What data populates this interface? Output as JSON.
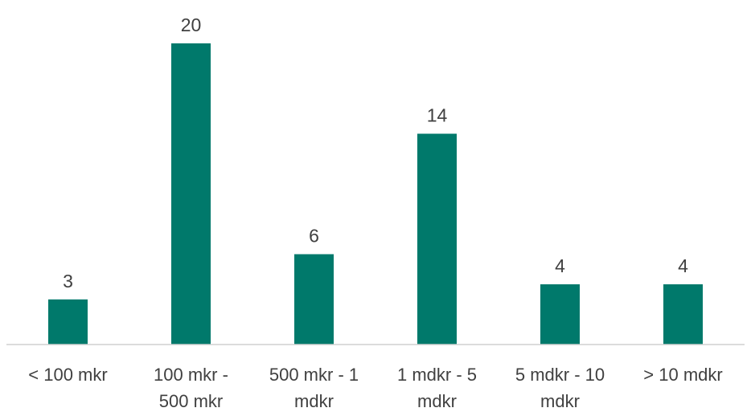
{
  "chart_data": {
    "type": "bar",
    "categories": [
      "< 100 mkr",
      "100 mkr - 500 mkr",
      "500 mkr - 1 mdkr",
      "1 mdkr - 5 mdkr",
      "5 mdkr - 10 mdkr",
      "> 10 mdkr"
    ],
    "category_lines": [
      [
        "< 100 mkr"
      ],
      [
        "100 mkr -",
        "500 mkr"
      ],
      [
        "500 mkr - 1",
        "mdkr"
      ],
      [
        "1 mdkr - 5",
        "mdkr"
      ],
      [
        "5 mdkr - 10",
        "mdkr"
      ],
      [
        "> 10 mdkr"
      ]
    ],
    "values": [
      3,
      20,
      6,
      14,
      4,
      4
    ],
    "data_labels": true,
    "ylim": [
      0,
      20
    ],
    "grid": false,
    "legend": "none",
    "colors": {
      "bar": "#00796B",
      "text": "#404040",
      "axis": "#d0d0d0"
    }
  }
}
